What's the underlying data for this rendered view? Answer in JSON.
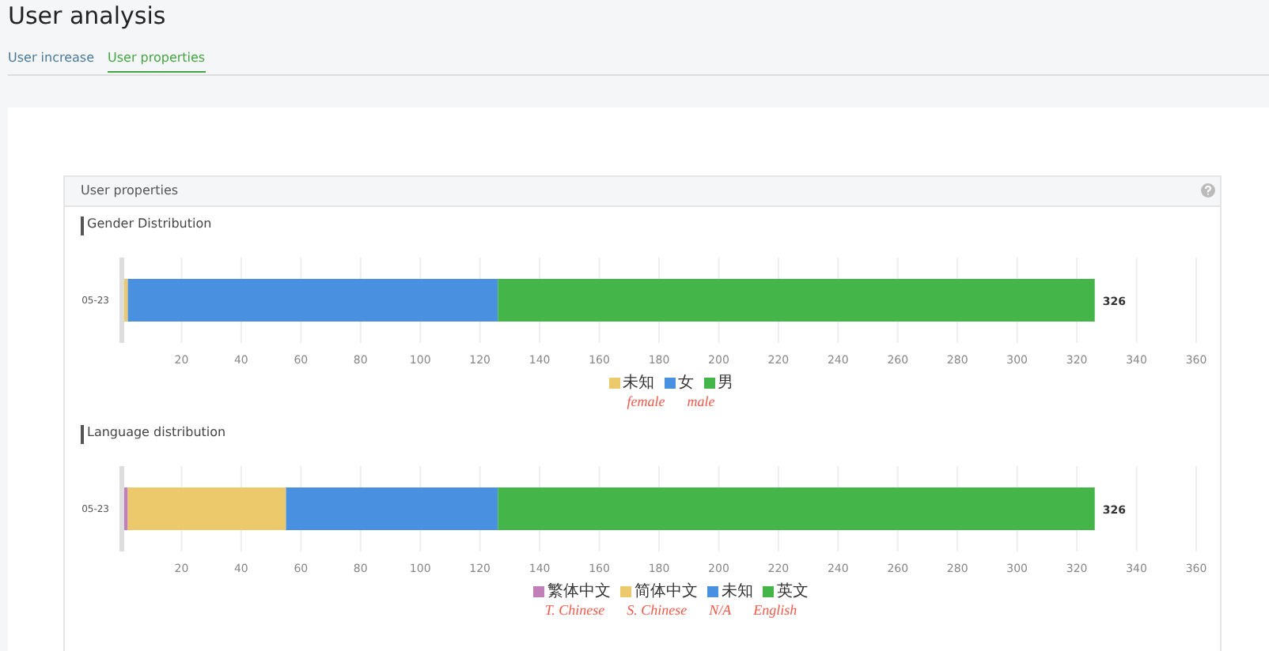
{
  "chart_data": [
    {
      "type": "bar",
      "orientation": "horizontal",
      "stacked": true,
      "title": "Gender Distribution",
      "categories": [
        "05-23"
      ],
      "series": [
        {
          "name": "未知",
          "color": "#ecc96b",
          "values": [
            2
          ]
        },
        {
          "name": "女",
          "color": "#4a90e0",
          "values": [
            124
          ]
        },
        {
          "name": "男",
          "color": "#44b549",
          "values": [
            200
          ]
        }
      ],
      "totals": [
        "326"
      ],
      "xlim": [
        0,
        360
      ],
      "xticks": [
        20,
        40,
        60,
        80,
        100,
        120,
        140,
        160,
        180,
        200,
        220,
        240,
        260,
        280,
        300,
        320,
        340,
        360
      ],
      "grid": "x",
      "legend": "bottom",
      "annotations": [
        "User analysis",
        "User increase",
        "User properties",
        "User properties",
        "female",
        "male"
      ]
    },
    {
      "type": "bar",
      "orientation": "horizontal",
      "stacked": true,
      "title": "Language distribution",
      "categories": [
        "05-23"
      ],
      "series": [
        {
          "name": "繁体中文",
          "color": "#c07fb8",
          "values": [
            2
          ]
        },
        {
          "name": "简体中文",
          "color": "#ecc96b",
          "values": [
            53
          ]
        },
        {
          "name": "未知",
          "color": "#4a90e0",
          "values": [
            71
          ]
        },
        {
          "name": "英文",
          "color": "#44b549",
          "values": [
            200
          ]
        }
      ],
      "totals": [
        "326"
      ],
      "xlim": [
        0,
        360
      ],
      "xticks": [
        20,
        40,
        60,
        80,
        100,
        120,
        140,
        160,
        180,
        200,
        220,
        240,
        260,
        280,
        300,
        320,
        340,
        360
      ],
      "grid": "x",
      "legend": "bottom",
      "annotations": [
        "T. Chinese",
        "S. Chinese",
        "N/A",
        "English"
      ]
    }
  ]
}
